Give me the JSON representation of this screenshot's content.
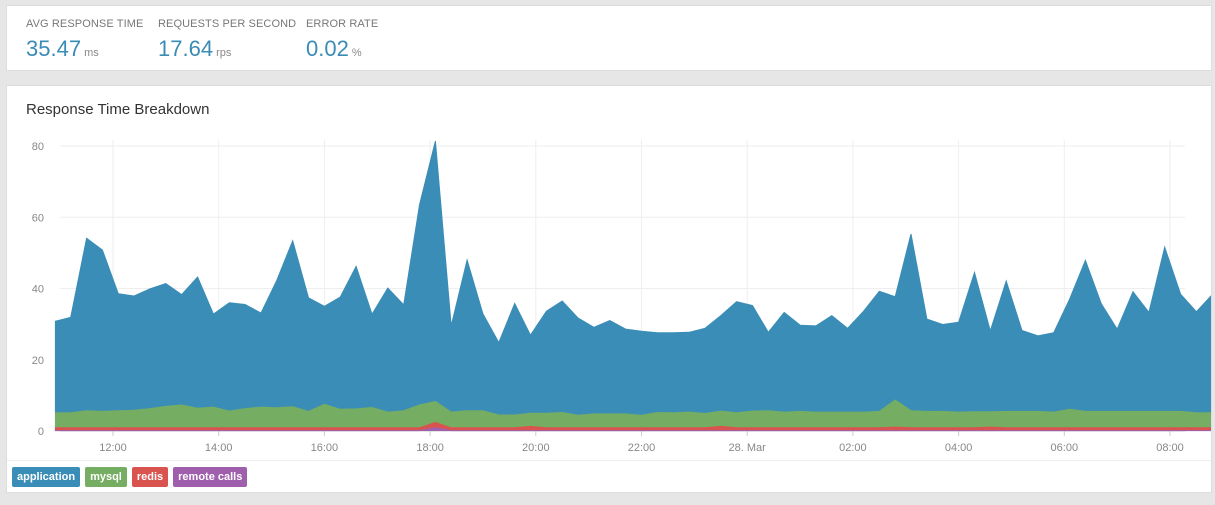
{
  "metrics": [
    {
      "label": "AVG RESPONSE TIME",
      "value": "35.47",
      "unit": "ms"
    },
    {
      "label": "REQUESTS PER SECOND",
      "value": "17.64",
      "unit": "rps"
    },
    {
      "label": "ERROR RATE",
      "value": "0.02",
      "unit": "%"
    }
  ],
  "chart_data": {
    "type": "area",
    "stacked": true,
    "title": "Response Time Breakdown",
    "xlabel": "",
    "ylabel": "",
    "ylim": [
      0,
      80
    ],
    "yticks": [
      0,
      20,
      40,
      60,
      80
    ],
    "grid": true,
    "legend_position": "bottom-left",
    "x_tick_labels": [
      "12:00",
      "14:00",
      "16:00",
      "18:00",
      "20:00",
      "22:00",
      "28. Mar",
      "02:00",
      "04:00",
      "06:00",
      "08:00"
    ],
    "x_tick_hours": [
      12,
      14,
      16,
      18,
      20,
      22,
      24,
      26,
      28,
      30,
      32
    ],
    "x_start_hour": 10.9,
    "x_step_hours": 0.3,
    "series": [
      {
        "name": "application",
        "color": "#3a8db6",
        "values": [
          25.7,
          26.8,
          48.4,
          45.3,
          32.8,
          32.1,
          33.6,
          34.5,
          31,
          36.8,
          26.1,
          30.4,
          29.2,
          26.4,
          35.8,
          46.6,
          31.9,
          27.5,
          31.5,
          40,
          26.2,
          34.8,
          29.7,
          56.2,
          73.1,
          24.2,
          42.3,
          27.2,
          20.3,
          31.3,
          21.9,
          28.6,
          31.3,
          27.3,
          24.3,
          26.2,
          23.8,
          23.6,
          22.4,
          22.5,
          22.4,
          23.9,
          26.8,
          31.2,
          29.6,
          22,
          28,
          24.2,
          24.2,
          27.1,
          23.5,
          28.3,
          33.7,
          29,
          49.6,
          25.9,
          24.4,
          25.2,
          39.1,
          22.7,
          36.6,
          22.7,
          21.2,
          22.3,
          30.9,
          42.4,
          30.2,
          23.1,
          33.6,
          27.8,
          46.1,
          32.9,
          28.4,
          33.2,
          26.4,
          25.1,
          25,
          27.2,
          32.4,
          35.8,
          27.2,
          22.6,
          28.7,
          30.8
        ],
        "note": ""
      },
      {
        "name": "mysql",
        "color": "#75ad63",
        "values": [
          4.2,
          4.2,
          4.8,
          4.6,
          4.8,
          4.9,
          5.4,
          6,
          6.4,
          5.5,
          5.8,
          4.7,
          5.4,
          5.8,
          5.6,
          5.9,
          4.6,
          6.6,
          5.2,
          5.3,
          5.7,
          4.4,
          4.8,
          6.4,
          5.9,
          4.4,
          4.8,
          4.8,
          3.6,
          3.6,
          3.7,
          4.1,
          4.3,
          3.5,
          3.9,
          3.9,
          3.9,
          3.5,
          4.3,
          4.2,
          4.4,
          4,
          4.3,
          4.2,
          4.7,
          4.8,
          4.4,
          4.6,
          4.4,
          4.4,
          4.4,
          4.4,
          4.6,
          7.6,
          4.8,
          4.6,
          4.6,
          4.4,
          4.5,
          4.3,
          4.6,
          4.6,
          4.6,
          4.4,
          5.2,
          4.6,
          4.6,
          4.6,
          4.6,
          4.6,
          4.6,
          4.6,
          4.2,
          4.2,
          4.6,
          4.6,
          4.6,
          4.6,
          4.6,
          4.6,
          4.6,
          4.6,
          4.6,
          4.6
        ]
      },
      {
        "name": "redis",
        "color": "#d9534f",
        "values": [
          0.8,
          0.8,
          0.8,
          0.8,
          0.8,
          0.8,
          0.8,
          0.8,
          0.8,
          0.8,
          0.8,
          0.8,
          0.8,
          0.8,
          0.8,
          0.8,
          0.8,
          0.8,
          0.8,
          0.8,
          0.8,
          0.8,
          0.8,
          0.8,
          1.5,
          0.8,
          0.8,
          0.8,
          0.8,
          0.8,
          1.2,
          0.8,
          0.8,
          0.8,
          0.8,
          0.8,
          0.8,
          0.8,
          0.8,
          0.8,
          0.8,
          0.8,
          1.2,
          0.8,
          0.8,
          0.8,
          0.8,
          0.8,
          0.8,
          0.8,
          0.8,
          0.8,
          0.8,
          1,
          0.8,
          0.8,
          0.8,
          0.8,
          0.8,
          1,
          0.8,
          0.8,
          0.8,
          0.8,
          0.8,
          0.8,
          0.8,
          0.8,
          0.8,
          0.8,
          0.8,
          0.8,
          0.8,
          0.8,
          0.8,
          0.8,
          1,
          0.8,
          0.8,
          0.8,
          0.8,
          0.8,
          0.8,
          0.8
        ]
      },
      {
        "name": "remote calls",
        "color": "#a05fad",
        "values": [
          0.1,
          0.1,
          0.1,
          0.1,
          0.1,
          0.1,
          0.1,
          0.1,
          0.1,
          0.1,
          0.1,
          0.1,
          0.1,
          0.1,
          0.1,
          0.1,
          0.1,
          0.1,
          0.1,
          0.1,
          0.1,
          0.1,
          0.1,
          0.1,
          0.9,
          0.1,
          0.1,
          0.1,
          0.1,
          0.1,
          0.1,
          0.1,
          0.1,
          0.1,
          0.1,
          0.1,
          0.1,
          0.1,
          0.1,
          0.1,
          0.1,
          0.1,
          0.1,
          0.1,
          0.1,
          0.1,
          0.1,
          0.1,
          0.1,
          0.1,
          0.1,
          0.1,
          0.1,
          0.1,
          0.1,
          0.1,
          0.1,
          0.1,
          0.1,
          0.1,
          0.1,
          0.1,
          0.1,
          0.1,
          0.1,
          0.1,
          0.1,
          0.1,
          0.1,
          0.1,
          0.1,
          0.1,
          0.1,
          0.1,
          0.1,
          0.1,
          0.1,
          0.1,
          0.1,
          0.1,
          0.1,
          0.1,
          0.1,
          0.1
        ]
      }
    ]
  }
}
